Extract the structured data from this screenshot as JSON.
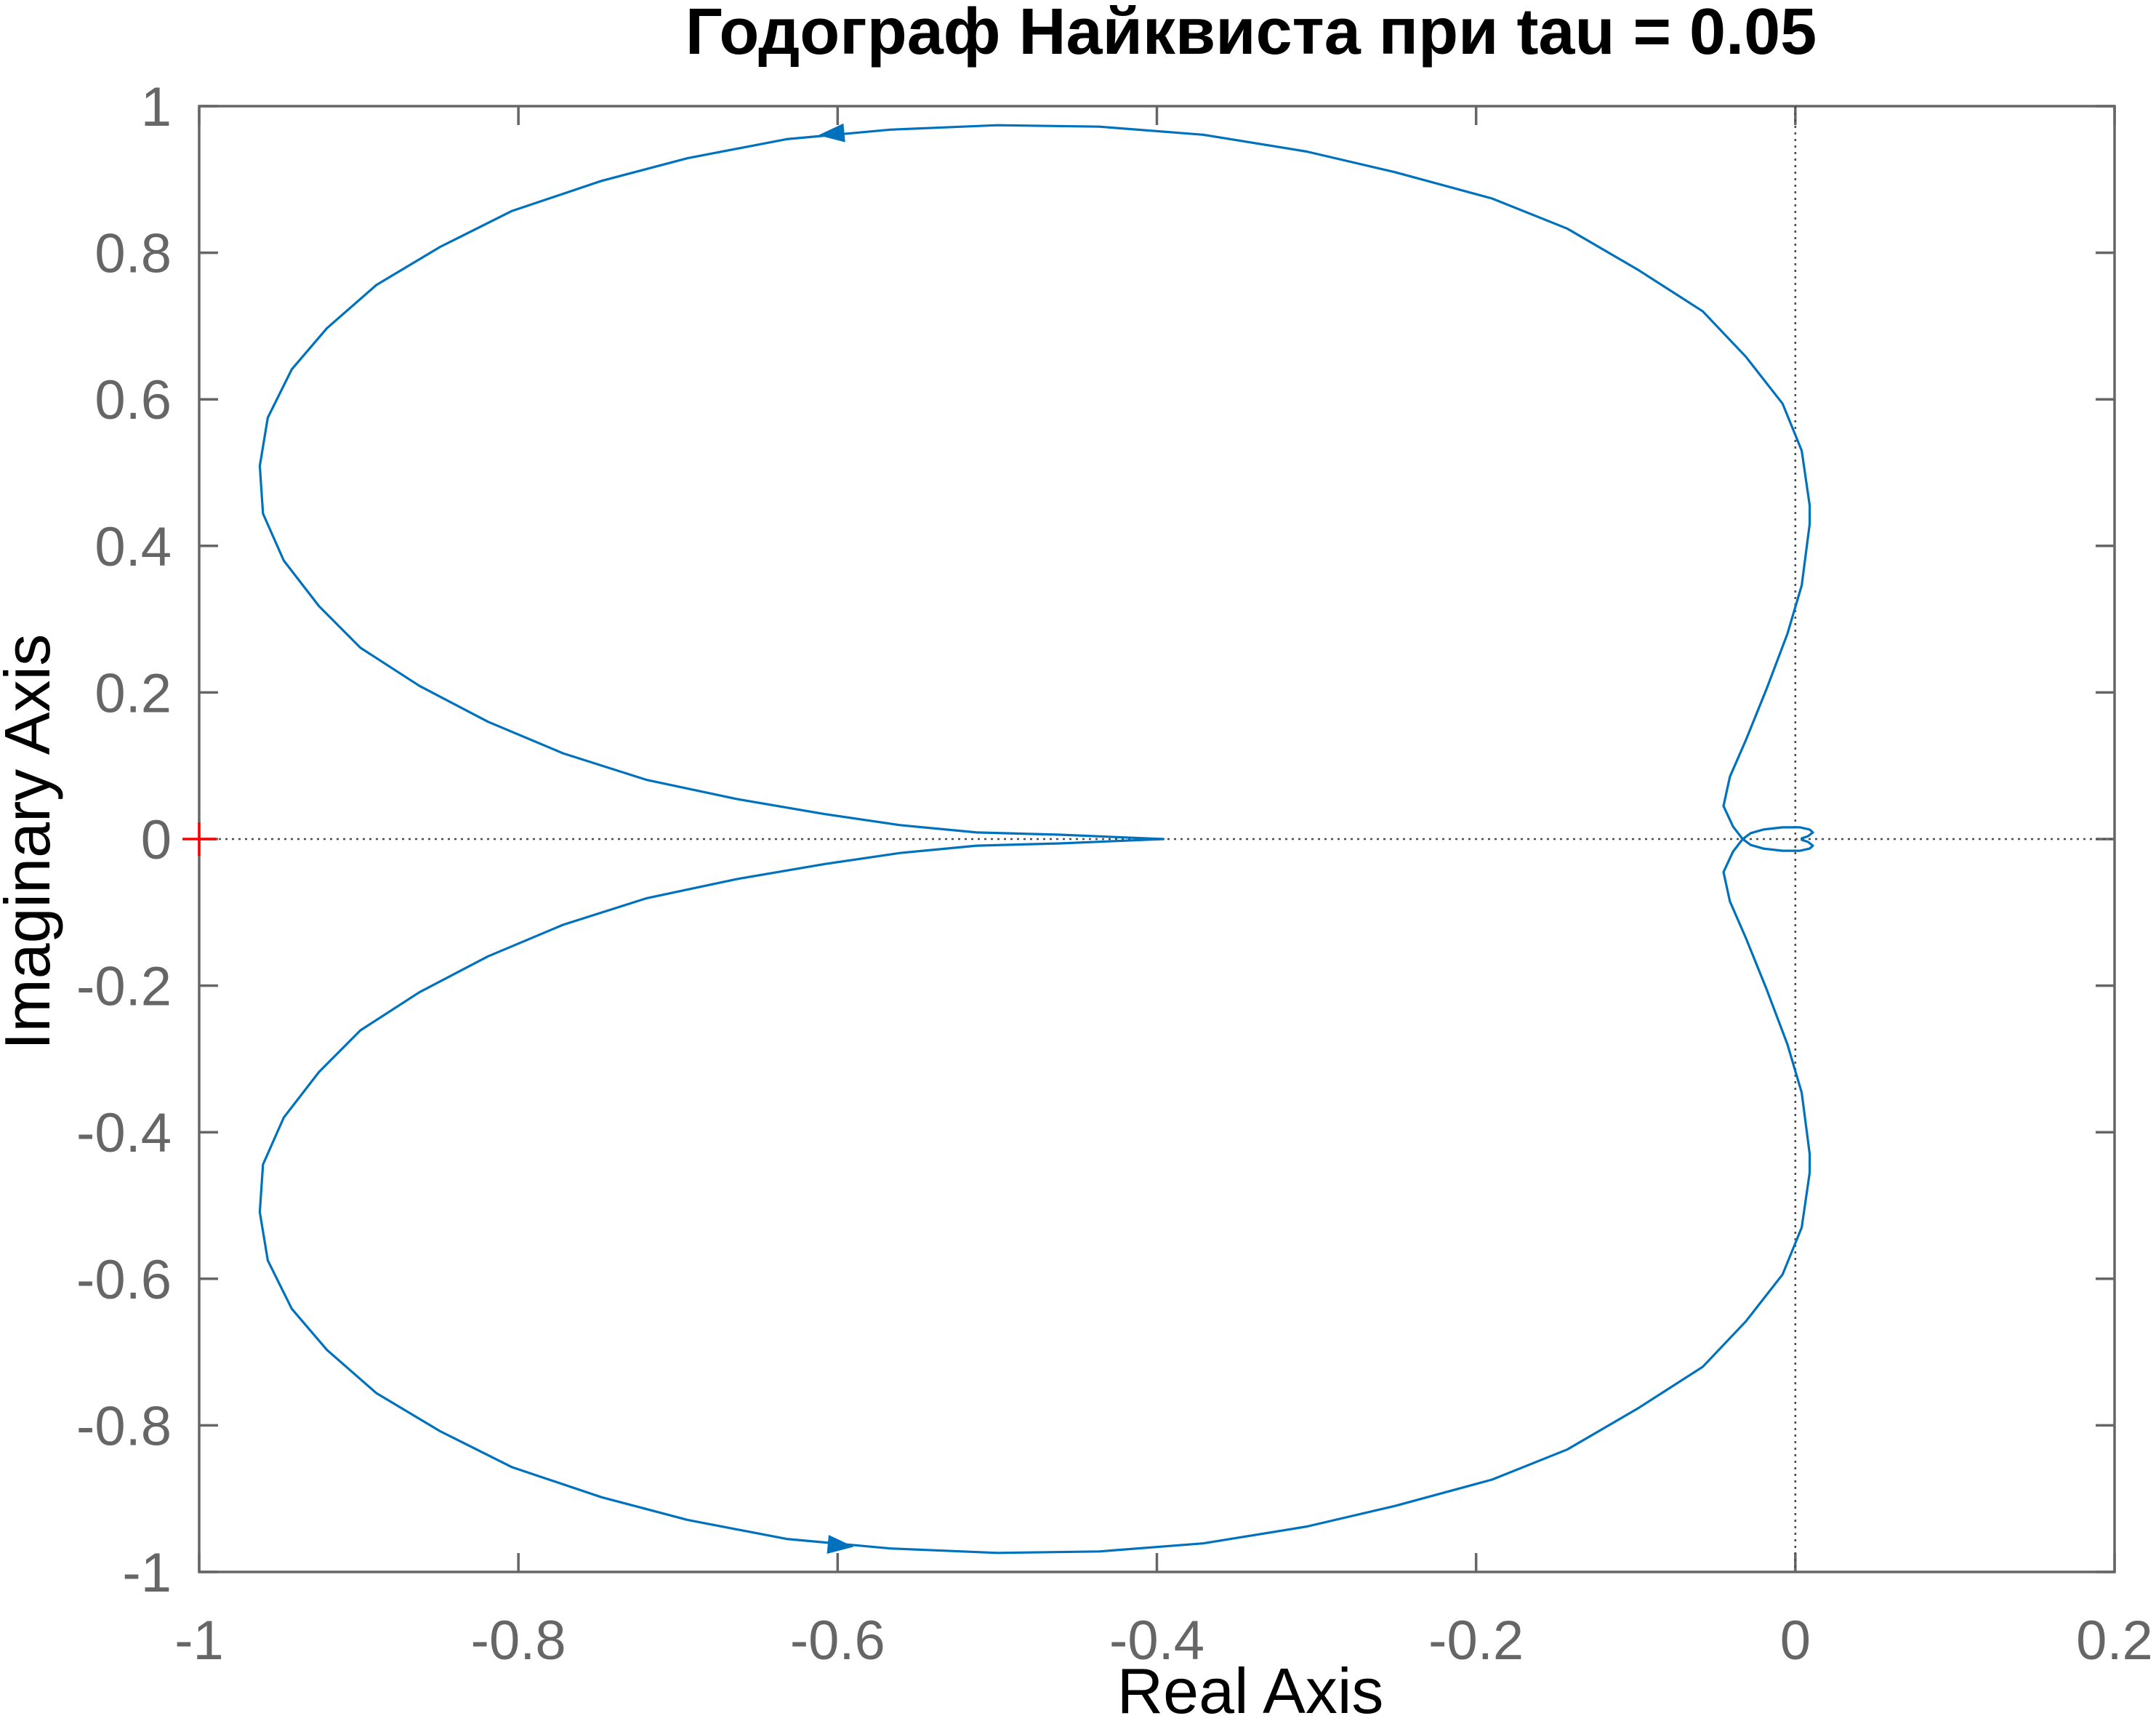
{
  "chart_data": {
    "type": "line",
    "title": "Годограф Найквиста при tau = 0.05",
    "xlabel": "Real Axis",
    "ylabel": "Imaginary Axis",
    "xlim": [
      -1,
      0.2
    ],
    "ylim": [
      -1,
      1
    ],
    "grid": false,
    "xticks": [
      -1,
      -0.8,
      -0.6,
      -0.4,
      -0.2,
      0,
      0.2
    ],
    "xtick_labels": [
      "-1",
      "-0.8",
      "-0.6",
      "-0.4",
      "-0.2",
      "0",
      "0.2"
    ],
    "yticks": [
      1,
      0.8,
      0.6,
      0.4,
      0.2,
      0,
      -0.2,
      -0.4,
      -0.6,
      -0.8,
      -1
    ],
    "ytick_labels": [
      "1",
      "0.8",
      "0.6",
      "0.4",
      "0.2",
      "0",
      "-0.2",
      "-0.4",
      "-0.6",
      "-0.8",
      "-1"
    ],
    "series": [
      {
        "x": [
          0.004,
          0.008,
          0.011,
          0.009,
          0.003,
          -0.008,
          -0.02,
          -0.028,
          -0.033,
          -0.039,
          -0.045,
          -0.041,
          -0.031,
          -0.018,
          -0.005,
          0.004,
          0.009,
          0.009,
          0.004,
          -0.008,
          -0.031,
          -0.058,
          -0.098,
          -0.143,
          -0.19,
          -0.251,
          -0.306,
          -0.371,
          -0.436,
          -0.5,
          -0.567,
          -0.632,
          -0.694,
          -0.748,
          -0.804,
          -0.849,
          -0.889,
          -0.92,
          -0.942,
          -0.957,
          -0.962,
          -0.96,
          -0.947,
          -0.925,
          -0.899,
          -0.862,
          -0.819,
          -0.772,
          -0.72,
          -0.664,
          -0.608,
          -0.561,
          -0.513,
          -0.461,
          -0.396
        ],
        "y": [
          -0.001,
          -0.004,
          -0.009,
          -0.013,
          -0.016,
          -0.016,
          -0.013,
          -0.008,
          0,
          0.017,
          0.045,
          0.085,
          0.135,
          0.205,
          0.28,
          0.346,
          0.43,
          0.455,
          0.53,
          0.594,
          0.658,
          0.72,
          0.776,
          0.833,
          0.874,
          0.91,
          0.938,
          0.961,
          0.972,
          0.974,
          0.968,
          0.955,
          0.929,
          0.898,
          0.857,
          0.808,
          0.756,
          0.697,
          0.641,
          0.575,
          0.509,
          0.444,
          0.38,
          0.318,
          0.261,
          0.209,
          0.16,
          0.117,
          0.081,
          0.055,
          0.034,
          0.019,
          0.009,
          0.006,
          0
        ]
      },
      {
        "x": [
          -0.396,
          -0.461,
          -0.513,
          -0.561,
          -0.608,
          -0.664,
          -0.72,
          -0.772,
          -0.819,
          -0.862,
          -0.899,
          -0.925,
          -0.947,
          -0.96,
          -0.962,
          -0.957,
          -0.942,
          -0.92,
          -0.889,
          -0.849,
          -0.804,
          -0.748,
          -0.694,
          -0.632,
          -0.567,
          -0.5,
          -0.436,
          -0.371,
          -0.306,
          -0.251,
          -0.19,
          -0.143,
          -0.098,
          -0.058,
          -0.031,
          -0.008,
          0.004,
          0.009,
          0.009,
          0.004,
          -0.005,
          -0.018,
          -0.031,
          -0.041,
          -0.045,
          -0.039,
          -0.033,
          -0.028,
          -0.02,
          -0.008,
          0.003,
          0.009,
          0.011,
          0.008,
          0.004
        ],
        "y": [
          0,
          -0.006,
          -0.009,
          -0.019,
          -0.034,
          -0.055,
          -0.081,
          -0.117,
          -0.16,
          -0.209,
          -0.261,
          -0.318,
          -0.38,
          -0.444,
          -0.509,
          -0.575,
          -0.641,
          -0.697,
          -0.756,
          -0.808,
          -0.857,
          -0.898,
          -0.929,
          -0.955,
          -0.968,
          -0.974,
          -0.972,
          -0.961,
          -0.938,
          -0.91,
          -0.874,
          -0.833,
          -0.776,
          -0.72,
          -0.658,
          -0.594,
          -0.53,
          -0.455,
          -0.43,
          -0.346,
          -0.28,
          -0.205,
          -0.135,
          -0.085,
          -0.045,
          -0.017,
          0,
          0.008,
          0.013,
          0.016,
          0.016,
          0.013,
          0.009,
          0.004,
          0.001
        ]
      }
    ],
    "direction_arrows": [
      {
        "x": -0.604,
        "y": 0.962,
        "direction": "left"
      },
      {
        "x": -0.598,
        "y": -0.964,
        "direction": "right"
      }
    ],
    "critical_point": {
      "x": -1,
      "y": 0
    },
    "reference_lines": {
      "x": 0,
      "y": 0
    },
    "colors": {
      "curve": "#0072BD",
      "critical_point": "#FF0000",
      "axes": "#666666",
      "reference_lines": "#4D4D4D",
      "text": "#000000",
      "background": "#FFFFFF"
    }
  }
}
